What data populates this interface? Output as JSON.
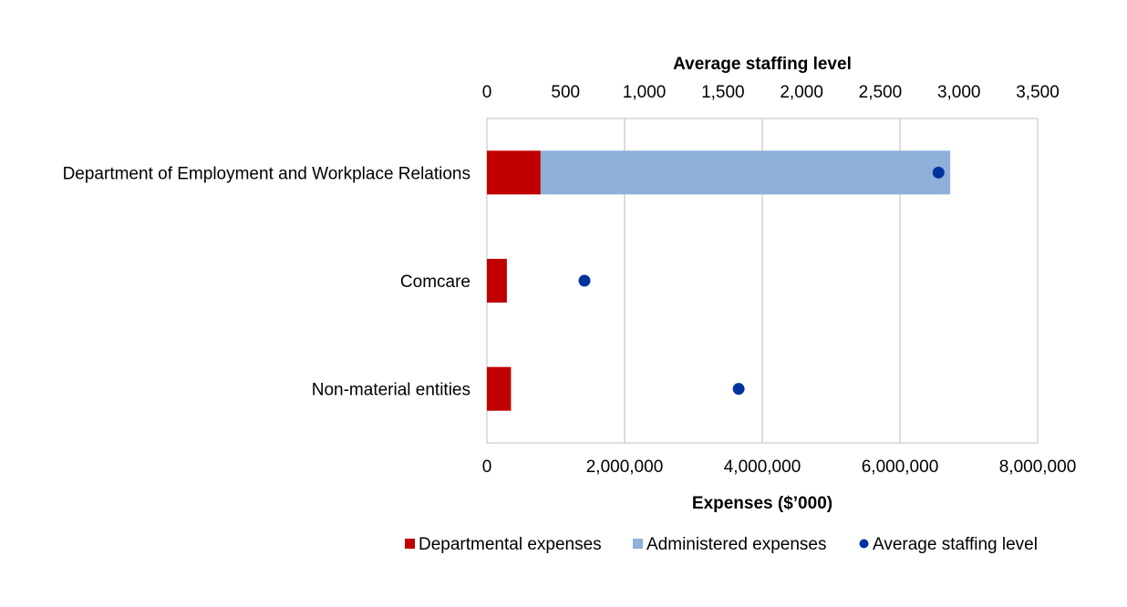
{
  "chart_data": {
    "type": "bar",
    "stacked": true,
    "orientation": "horizontal",
    "categories": [
      "Department of Employment and Workplace Relations",
      "Comcare",
      "Non-material entities"
    ],
    "series": [
      {
        "name": "Departmental expenses",
        "axis": "bottom",
        "values": [
          780000,
          290000,
          350000
        ],
        "color": "#C00000"
      },
      {
        "name": "Administered expenses",
        "axis": "bottom",
        "values": [
          5950000,
          0,
          0
        ],
        "color": "#8EB0DB"
      },
      {
        "name": "Average staffing level",
        "axis": "top",
        "marker": "dot",
        "values": [
          2870,
          620,
          1600
        ],
        "color": "#0033A0"
      }
    ],
    "xlabel_bottom": "Expenses ($’000)",
    "xlim_bottom": [
      0,
      8000000
    ],
    "xticks_bottom": [
      "0",
      "2,000,000",
      "4,000,000",
      "6,000,000",
      "8,000,000"
    ],
    "xlabel_top": "Average staffing level",
    "xlim_top": [
      0,
      3500
    ],
    "xticks_top": [
      "0",
      "500",
      "1,000",
      "1,500",
      "2,000",
      "2,500",
      "3,000",
      "3,500"
    ],
    "grid": "vertical",
    "legend": "bottom",
    "legend_entries": [
      "Departmental expenses",
      "Administered expenses",
      "Average staffing level"
    ]
  }
}
